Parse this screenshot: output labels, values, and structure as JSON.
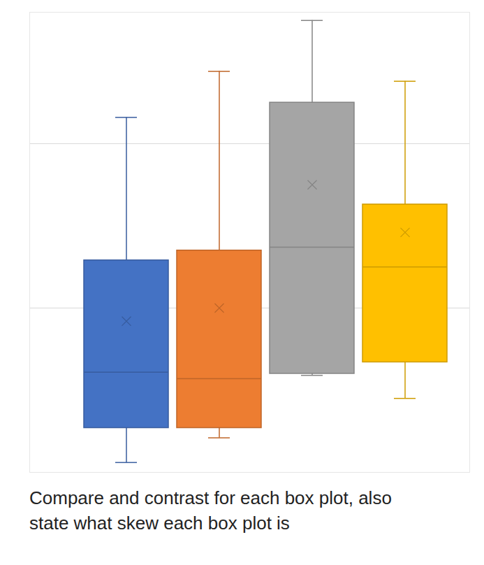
{
  "chart_data": {
    "type": "box",
    "caption": "Compare and contrast for each box plot, also state what skew each box plot is",
    "categories": [
      null,
      null,
      null,
      null
    ],
    "min": [
      0.6,
      2.1,
      5.9,
      4.5
    ],
    "q1": [
      2.7,
      2.7,
      6.0,
      6.7
    ],
    "median": [
      6.1,
      5.7,
      13.7,
      12.5
    ],
    "q3": [
      12.9,
      13.5,
      22.5,
      16.3
    ],
    "max": [
      21.6,
      24.4,
      27.5,
      23.8
    ],
    "mean": [
      9.2,
      10.0,
      17.5,
      14.6
    ],
    "colors": [
      "#4472c4",
      "#ed7d31",
      "#a5a5a5",
      "#ffc000"
    ],
    "ylim": [
      0,
      28
    ],
    "yticks": [
      10,
      20
    ],
    "grid": true,
    "tick_labels": false
  }
}
